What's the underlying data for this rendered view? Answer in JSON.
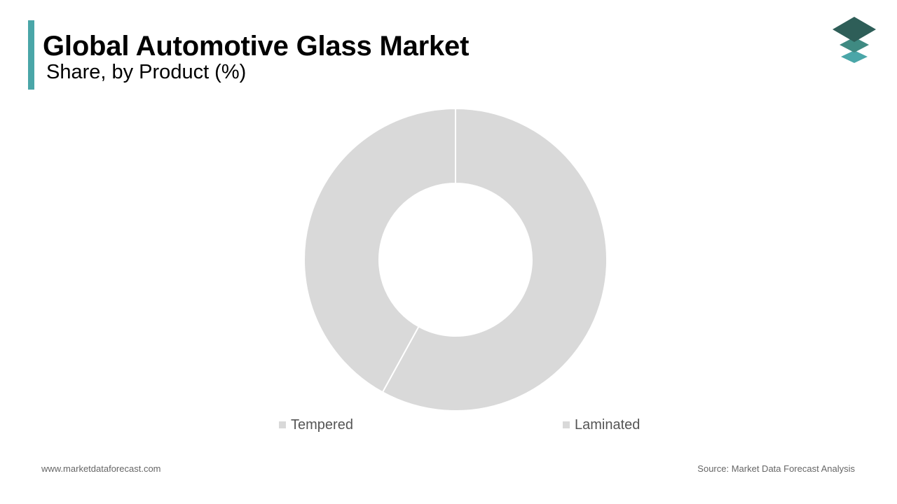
{
  "header": {
    "title": "Global Automotive Glass Market",
    "subtitle": "Share, by Product (%)",
    "accent_color": "#4aa6a8"
  },
  "logo": {
    "icon": "stacked-layers-icon",
    "colors": [
      "#2e5e58",
      "#3f8a82",
      "#4aa6a8"
    ]
  },
  "chart_data": {
    "type": "pie",
    "variant": "donut",
    "title": "Global Automotive Glass Market",
    "subtitle": "Share, by Product (%)",
    "categories": [
      "Laminated",
      "Tempered"
    ],
    "values": [
      58,
      42
    ],
    "slice_color": "#d9d9d9",
    "legend": {
      "placement": "bottom",
      "items": [
        "Tempered",
        "Laminated"
      ]
    },
    "data_labels": false
  },
  "footer": {
    "website": "www.marketdataforecast.com",
    "source": "Source: Market Data Forecast Analysis"
  }
}
